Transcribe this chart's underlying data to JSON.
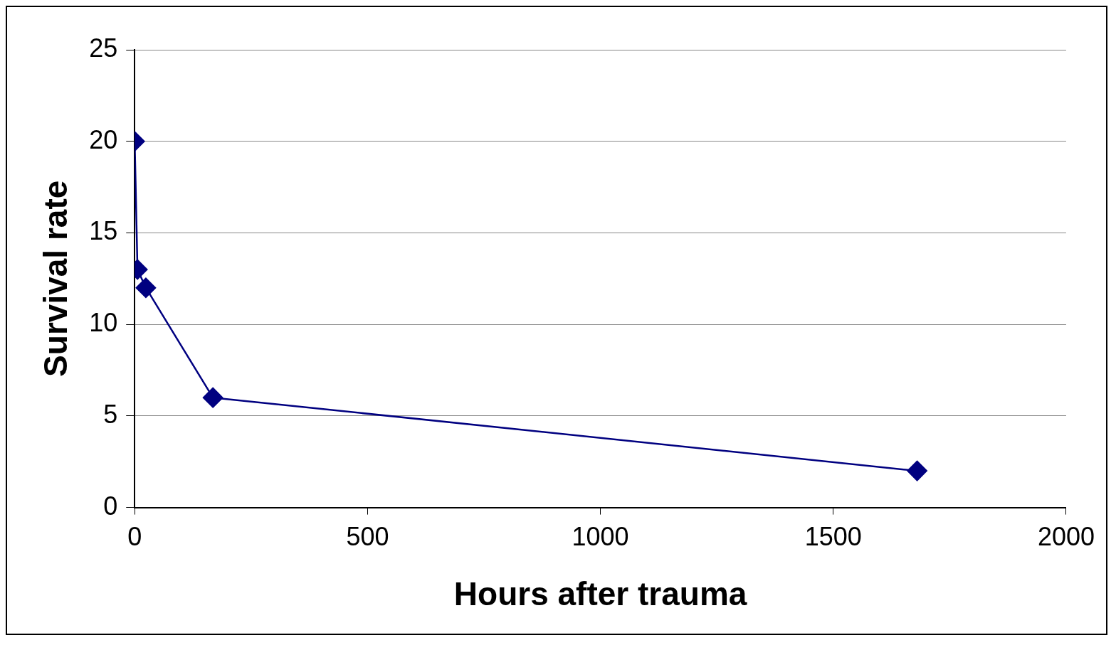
{
  "chart_data": {
    "type": "line",
    "xlabel": "Hours after trauma",
    "ylabel": "Survival rate",
    "x": [
      0,
      6,
      24,
      168,
      1680
    ],
    "series": [
      {
        "color": "#000080",
        "values": [
          20,
          13,
          12,
          6,
          2
        ]
      }
    ],
    "xlim": [
      0,
      2000
    ],
    "xticks": [
      0,
      500,
      1000,
      1500,
      2000
    ],
    "ylim": [
      0,
      25
    ],
    "yticks": [
      0,
      5,
      10,
      15,
      20,
      25
    ],
    "grid": "y",
    "legend": false,
    "marker": "diamond",
    "line_style": "solid"
  }
}
